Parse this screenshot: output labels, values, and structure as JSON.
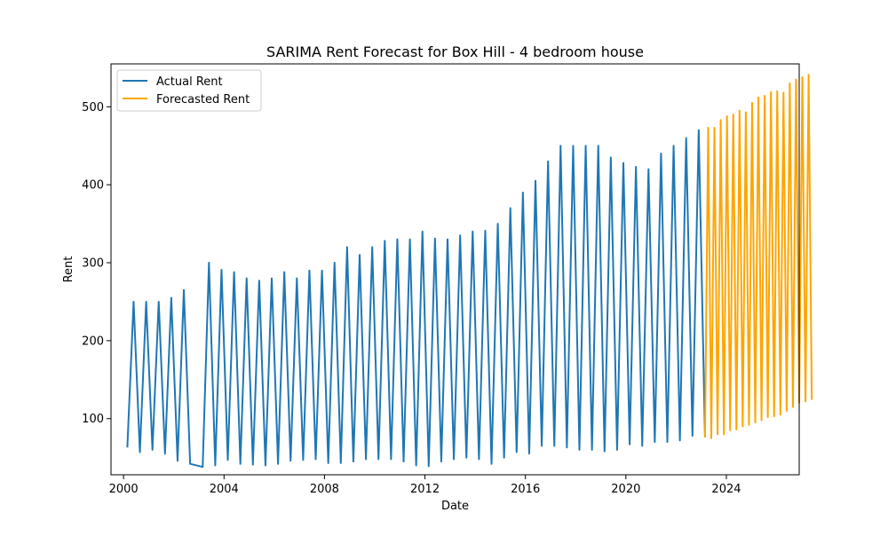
{
  "chart_data": {
    "type": "line",
    "title": "SARIMA Rent Forecast for Box Hill - 4 bedroom house",
    "xlabel": "Date",
    "ylabel": "Rent",
    "xlim": [
      1999.5,
      2026.9
    ],
    "ylim": [
      28,
      555
    ],
    "x_ticks": [
      2000,
      2004,
      2008,
      2012,
      2016,
      2020,
      2024
    ],
    "x_tick_labels": [
      "2000",
      "2004",
      "2008",
      "2012",
      "2016",
      "2020",
      "2024"
    ],
    "y_ticks": [
      100,
      200,
      300,
      400,
      500
    ],
    "y_tick_labels": [
      "100",
      "200",
      "300",
      "400",
      "500"
    ],
    "grid": false,
    "legend_position": "top-left",
    "series": [
      {
        "name": "Actual Rent",
        "color": "#1f77b4",
        "points": [
          [
            2000.15,
            63
          ],
          [
            2000.4,
            250
          ],
          [
            2000.65,
            57
          ],
          [
            2000.9,
            250
          ],
          [
            2001.15,
            60
          ],
          [
            2001.4,
            250
          ],
          [
            2001.65,
            55
          ],
          [
            2001.9,
            255
          ],
          [
            2002.15,
            46
          ],
          [
            2002.4,
            265
          ],
          [
            2002.65,
            42
          ],
          [
            2003.15,
            38
          ],
          [
            2003.4,
            300
          ],
          [
            2003.65,
            40
          ],
          [
            2003.9,
            291
          ],
          [
            2004.15,
            47
          ],
          [
            2004.4,
            288
          ],
          [
            2004.65,
            42
          ],
          [
            2004.9,
            280
          ],
          [
            2005.15,
            41
          ],
          [
            2005.4,
            277
          ],
          [
            2005.65,
            40
          ],
          [
            2005.9,
            280
          ],
          [
            2006.15,
            42
          ],
          [
            2006.4,
            288
          ],
          [
            2006.65,
            46
          ],
          [
            2006.9,
            280
          ],
          [
            2007.15,
            47
          ],
          [
            2007.4,
            290
          ],
          [
            2007.65,
            48
          ],
          [
            2007.9,
            290
          ],
          [
            2008.15,
            43
          ],
          [
            2008.4,
            300
          ],
          [
            2008.65,
            43
          ],
          [
            2008.9,
            320
          ],
          [
            2009.15,
            45
          ],
          [
            2009.4,
            310
          ],
          [
            2009.65,
            48
          ],
          [
            2009.9,
            320
          ],
          [
            2010.15,
            48
          ],
          [
            2010.4,
            328
          ],
          [
            2010.65,
            48
          ],
          [
            2010.9,
            330
          ],
          [
            2011.15,
            45
          ],
          [
            2011.4,
            330
          ],
          [
            2011.65,
            40
          ],
          [
            2011.9,
            340
          ],
          [
            2012.15,
            39
          ],
          [
            2012.4,
            331
          ],
          [
            2012.65,
            45
          ],
          [
            2012.9,
            330
          ],
          [
            2013.15,
            48
          ],
          [
            2013.4,
            335
          ],
          [
            2013.65,
            50
          ],
          [
            2013.9,
            340
          ],
          [
            2014.15,
            48
          ],
          [
            2014.4,
            341
          ],
          [
            2014.65,
            42
          ],
          [
            2014.9,
            350
          ],
          [
            2015.15,
            50
          ],
          [
            2015.4,
            370
          ],
          [
            2015.65,
            57
          ],
          [
            2015.9,
            390
          ],
          [
            2016.15,
            55
          ],
          [
            2016.4,
            405
          ],
          [
            2016.65,
            65
          ],
          [
            2016.9,
            430
          ],
          [
            2017.15,
            65
          ],
          [
            2017.4,
            450
          ],
          [
            2017.65,
            63
          ],
          [
            2017.9,
            450
          ],
          [
            2018.15,
            60
          ],
          [
            2018.4,
            450
          ],
          [
            2018.65,
            60
          ],
          [
            2018.9,
            450
          ],
          [
            2019.15,
            58
          ],
          [
            2019.4,
            435
          ],
          [
            2019.65,
            60
          ],
          [
            2019.9,
            428
          ],
          [
            2020.15,
            67
          ],
          [
            2020.4,
            423
          ],
          [
            2020.65,
            65
          ],
          [
            2020.9,
            420
          ],
          [
            2021.15,
            70
          ],
          [
            2021.4,
            440
          ],
          [
            2021.65,
            70
          ],
          [
            2021.9,
            450
          ],
          [
            2022.15,
            72
          ],
          [
            2022.4,
            460
          ],
          [
            2022.65,
            78
          ],
          [
            2022.9,
            470
          ],
          [
            2023.15,
            76
          ]
        ]
      },
      {
        "name": "Forecasted Rent",
        "color": "#ffa500",
        "points": [
          [
            2023.15,
            76
          ],
          [
            2023.275,
            473
          ],
          [
            2023.4,
            75
          ],
          [
            2023.525,
            473
          ],
          [
            2023.65,
            80
          ],
          [
            2023.775,
            483
          ],
          [
            2023.9,
            80
          ],
          [
            2024.025,
            488
          ],
          [
            2024.15,
            85
          ],
          [
            2024.275,
            490
          ],
          [
            2024.4,
            86
          ],
          [
            2024.525,
            495
          ],
          [
            2024.65,
            90
          ],
          [
            2024.775,
            493
          ],
          [
            2024.9,
            92
          ],
          [
            2025.025,
            505
          ],
          [
            2025.15,
            95
          ],
          [
            2025.275,
            512
          ],
          [
            2025.4,
            98
          ],
          [
            2025.525,
            514
          ],
          [
            2025.65,
            102
          ],
          [
            2025.775,
            519
          ],
          [
            2025.9,
            103
          ],
          [
            2026.025,
            520
          ],
          [
            2026.15,
            105
          ],
          [
            2026.275,
            518
          ],
          [
            2026.4,
            110
          ],
          [
            2026.525,
            530
          ],
          [
            2026.65,
            115
          ],
          [
            2026.775,
            535
          ],
          [
            2026.9,
            120
          ],
          [
            2027.025,
            538
          ],
          [
            2027.15,
            122
          ],
          [
            2027.275,
            541
          ],
          [
            2027.4,
            124
          ]
        ]
      }
    ]
  }
}
